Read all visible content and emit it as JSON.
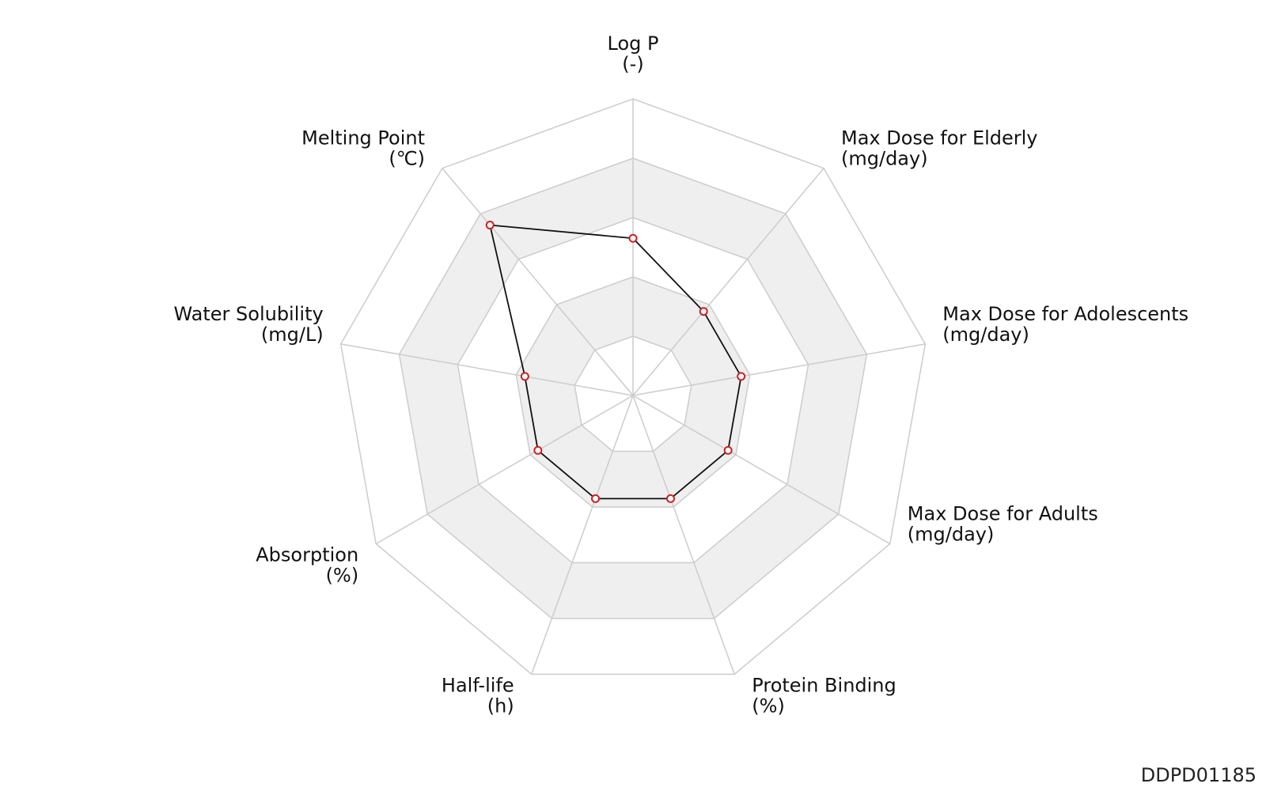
{
  "chart_data": {
    "type": "radar",
    "title": "",
    "axes": [
      {
        "name": "Log P",
        "unit": "(-)"
      },
      {
        "name": "Max Dose for Elderly",
        "unit": "(mg/day)"
      },
      {
        "name": "Max Dose for Adolescents",
        "unit": "(mg/day)"
      },
      {
        "name": "Max Dose for Adults",
        "unit": "(mg/day)"
      },
      {
        "name": "Protein Binding",
        "unit": "(%)"
      },
      {
        "name": "Half-life",
        "unit": "(h)"
      },
      {
        "name": "Absorption",
        "unit": "(%)"
      },
      {
        "name": "Water Solubility",
        "unit": "(mg/L)"
      },
      {
        "name": "Melting Point",
        "unit": "(℃)"
      }
    ],
    "rings": 5,
    "range": [
      0,
      1
    ],
    "series": [
      {
        "values": [
          0.53,
          0.37,
          0.37,
          0.37,
          0.37,
          0.37,
          0.37,
          0.37,
          0.75
        ]
      }
    ],
    "grid": true,
    "colors": {
      "line": "#111111",
      "marker_stroke": "#cc2222",
      "marker_fill": "#ffffff",
      "grid": "#cccccc",
      "band": "#efefef"
    }
  },
  "chart_id": "DDPD01185"
}
